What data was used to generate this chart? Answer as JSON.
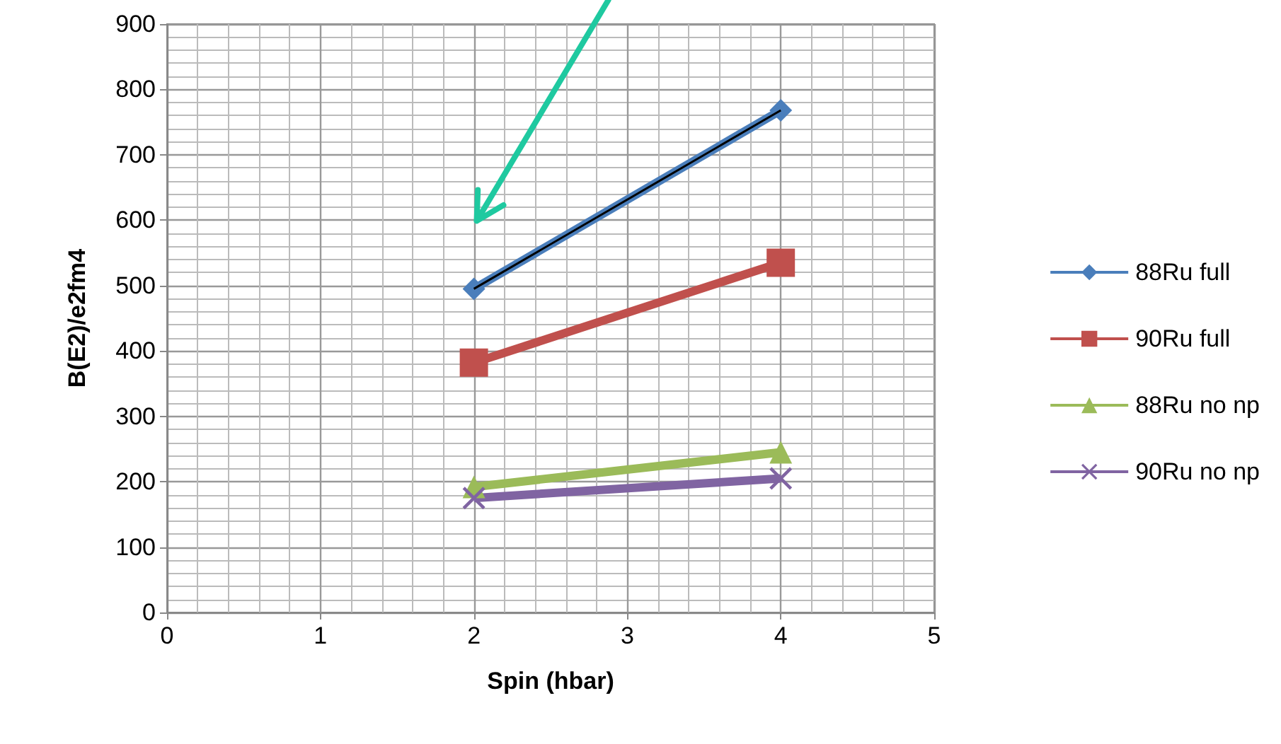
{
  "chart_data": {
    "type": "line",
    "xlabel": "Spin (hbar)",
    "ylabel": "B(E2)/e2fm4",
    "x": [
      2,
      4
    ],
    "series": [
      {
        "name": "88Ru full",
        "color": "#4a7ebb",
        "marker": "diamond",
        "values": [
          495,
          768
        ]
      },
      {
        "name": "90Ru full",
        "color": "#c0504d",
        "marker": "square",
        "values": [
          382,
          535
        ]
      },
      {
        "name": "88Ru no np",
        "color": "#9bbb59",
        "marker": "triangle",
        "values": [
          192,
          245
        ]
      },
      {
        "name": "90Ru no np",
        "color": "#8064a2",
        "marker": "cross",
        "values": [
          175,
          205
        ]
      },
      {
        "color": "#000000",
        "marker": "none",
        "x": [
          2,
          4
        ],
        "values": [
          495,
          768
        ]
      }
    ],
    "xlim": [
      0,
      5
    ],
    "xticks": [
      0,
      1,
      2,
      3,
      4,
      5
    ],
    "ylim": [
      0,
      900
    ],
    "yticks": [
      0,
      100,
      200,
      300,
      400,
      500,
      600,
      700,
      800,
      900
    ],
    "grid": true,
    "legend": "right"
  }
}
